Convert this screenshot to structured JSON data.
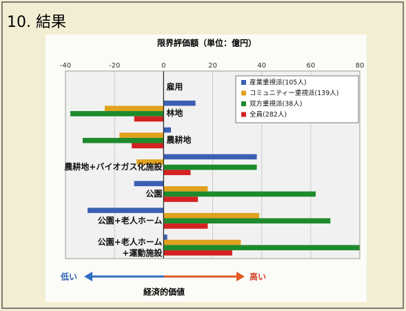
{
  "slide_title": "10. 結果",
  "chart_data": {
    "type": "barh",
    "title": "限界評価額（単位：億円）",
    "xlabel": "経済的価値",
    "annotations": {
      "low": "低い",
      "high": "高い"
    },
    "categories": [
      "雇用",
      "林地",
      "農耕地",
      "農耕地+バイオガス化施設",
      "公園",
      "公園+老人ホーム",
      "公園+老人ホーム\n+運動施設"
    ],
    "series": [
      {
        "name": "産業重視派(105人)",
        "color": "#3b5fb3",
        "values": [
          0,
          13,
          3,
          38,
          -12,
          -31,
          1.5
        ]
      },
      {
        "name": "コミュニティー重視派(139人)",
        "color": "#e0a21e",
        "values": [
          0,
          -24,
          -18,
          -11,
          18,
          39,
          31.5
        ]
      },
      {
        "name": "双方重視派(38人)",
        "color": "#1e8a2c",
        "values": [
          0,
          -38,
          -33,
          38,
          62,
          68,
          80
        ]
      },
      {
        "name": "全員(282人)",
        "color": "#d42222",
        "values": [
          0,
          -12,
          -13,
          11,
          14,
          18,
          28
        ]
      }
    ],
    "xlim": [
      -40,
      80
    ],
    "xticks": [
      -40,
      -20,
      0,
      20,
      40,
      60,
      80
    ],
    "grid": true,
    "legend": "top-right"
  }
}
